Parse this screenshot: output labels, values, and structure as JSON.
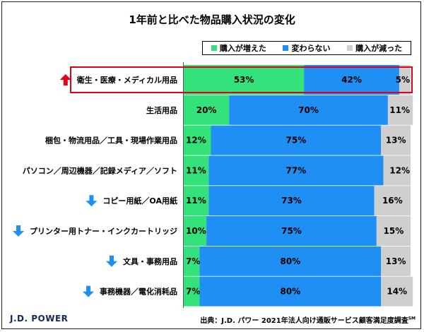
{
  "title": "1年前と比べた物品購入状況の変化",
  "source": {
    "text": "出典：J.D. パワー 2021年法人向け通販サービス顧客満足度調査",
    "superscript": "SM"
  },
  "brand": "J.D. POWER",
  "colors": {
    "increased": "#33e27a",
    "unchanged": "#1f8ff3",
    "decreased": "#cfcfcf",
    "up_arrow": "#e5001a",
    "down_arrow": "#1f8ff3",
    "highlight": "#e0001a"
  },
  "chart_data": {
    "type": "bar",
    "orientation": "horizontal",
    "stacked": true,
    "xlim": [
      0,
      100
    ],
    "legend_position": "top-right",
    "categories": [
      "衛生・医療・メディカル用品",
      "生活用品",
      "梱包・物流用品／工具・現場作業用品",
      "パソコン／周辺機器／記録メディア／ソフト",
      "コピー用紙／OA用紙",
      "プリンター用トナー・インクカートリッジ",
      "文具・事務用品",
      "事務機器／電化消耗品"
    ],
    "series": [
      {
        "name": "購入が増えた",
        "values": [
          53,
          20,
          12,
          11,
          11,
          10,
          7,
          7
        ]
      },
      {
        "name": "変わらない",
        "values": [
          42,
          70,
          75,
          77,
          73,
          75,
          80,
          80
        ]
      },
      {
        "name": "購入が減った",
        "values": [
          5,
          11,
          13,
          12,
          16,
          15,
          13,
          14
        ]
      }
    ],
    "trend_markers": [
      "up",
      "",
      "",
      "",
      "down",
      "down",
      "down",
      "down"
    ],
    "highlighted_category": "衛生・医療・メディカル用品"
  }
}
